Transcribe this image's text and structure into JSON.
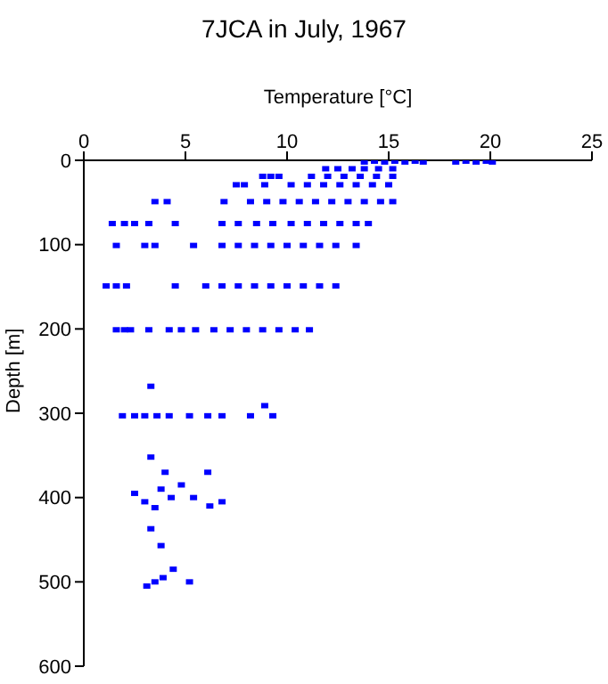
{
  "chart_data": {
    "type": "scatter",
    "title": "7JCA in July, 1967",
    "xlabel": "Temperature [°C]",
    "ylabel": "Depth [m]",
    "xlim": [
      0,
      25
    ],
    "xticks": [
      0,
      5,
      10,
      15,
      20,
      25
    ],
    "ylim": [
      600,
      0
    ],
    "yticks": [
      0,
      100,
      200,
      300,
      400,
      500,
      600
    ],
    "marker": "square",
    "series": [
      {
        "color": "#0000ff",
        "x": [
          13.8,
          14.3,
          14.8,
          15.3,
          15.8,
          16.3,
          16.7,
          18.3,
          18.8,
          19.3,
          19.8,
          20.1,
          11.9,
          12.5,
          13.2,
          13.8,
          14.5,
          15.2,
          8.8,
          9.2,
          9.6,
          11.2,
          12.0,
          12.8,
          13.6,
          14.4,
          15.2,
          7.5,
          7.9,
          8.9,
          10.2,
          11.0,
          11.8,
          12.6,
          13.4,
          14.2,
          15.0,
          3.5,
          4.1,
          6.9,
          8.2,
          9.0,
          9.8,
          10.6,
          11.4,
          12.2,
          13.0,
          13.8,
          14.6,
          15.2,
          1.4,
          2.0,
          2.5,
          3.2,
          4.5,
          6.8,
          7.6,
          8.5,
          9.3,
          10.2,
          11.0,
          11.8,
          12.6,
          13.4,
          14.0,
          1.6,
          3.0,
          3.5,
          5.4,
          6.8,
          7.6,
          8.4,
          9.2,
          10.0,
          10.8,
          11.6,
          12.4,
          13.4,
          1.1,
          1.6,
          2.1,
          4.5,
          6.0,
          6.8,
          7.6,
          8.4,
          9.2,
          10.0,
          10.8,
          11.6,
          12.4,
          1.6,
          2.0,
          2.3,
          3.2,
          4.2,
          4.8,
          5.5,
          6.4,
          7.2,
          8.0,
          8.8,
          9.6,
          10.4,
          11.1,
          3.3,
          1.9,
          2.5,
          3.0,
          3.6,
          4.2,
          5.2,
          6.1,
          6.8,
          8.2,
          8.9,
          9.3,
          3.3,
          4.0,
          6.1,
          2.5,
          3.0,
          3.5,
          3.8,
          4.3,
          4.8,
          5.4,
          6.2,
          6.8,
          3.3,
          3.8,
          3.1,
          3.5,
          3.9,
          4.4,
          5.2
        ],
        "values": [
          2,
          1,
          2,
          1,
          2,
          1,
          2,
          2,
          1,
          2,
          1,
          2,
          10,
          10,
          10,
          10,
          10,
          10,
          19,
          19,
          19,
          19,
          19,
          19,
          19,
          19,
          19,
          29,
          29,
          29,
          29,
          29,
          29,
          29,
          29,
          29,
          29,
          49,
          49,
          49,
          49,
          49,
          49,
          49,
          49,
          49,
          49,
          49,
          49,
          49,
          75,
          75,
          75,
          75,
          75,
          75,
          75,
          75,
          75,
          75,
          75,
          75,
          75,
          75,
          75,
          101,
          101,
          101,
          101,
          101,
          101,
          101,
          101,
          101,
          101,
          101,
          101,
          101,
          149,
          149,
          149,
          149,
          149,
          149,
          149,
          149,
          149,
          149,
          149,
          149,
          149,
          201,
          201,
          201,
          201,
          201,
          201,
          201,
          201,
          201,
          201,
          201,
          201,
          201,
          201,
          268,
          303,
          303,
          303,
          303,
          303,
          303,
          303,
          303,
          303,
          291,
          303,
          352,
          370,
          370,
          395,
          405,
          412,
          390,
          400,
          385,
          400,
          410,
          405,
          437,
          457,
          505,
          500,
          495,
          485,
          500
        ]
      }
    ]
  }
}
